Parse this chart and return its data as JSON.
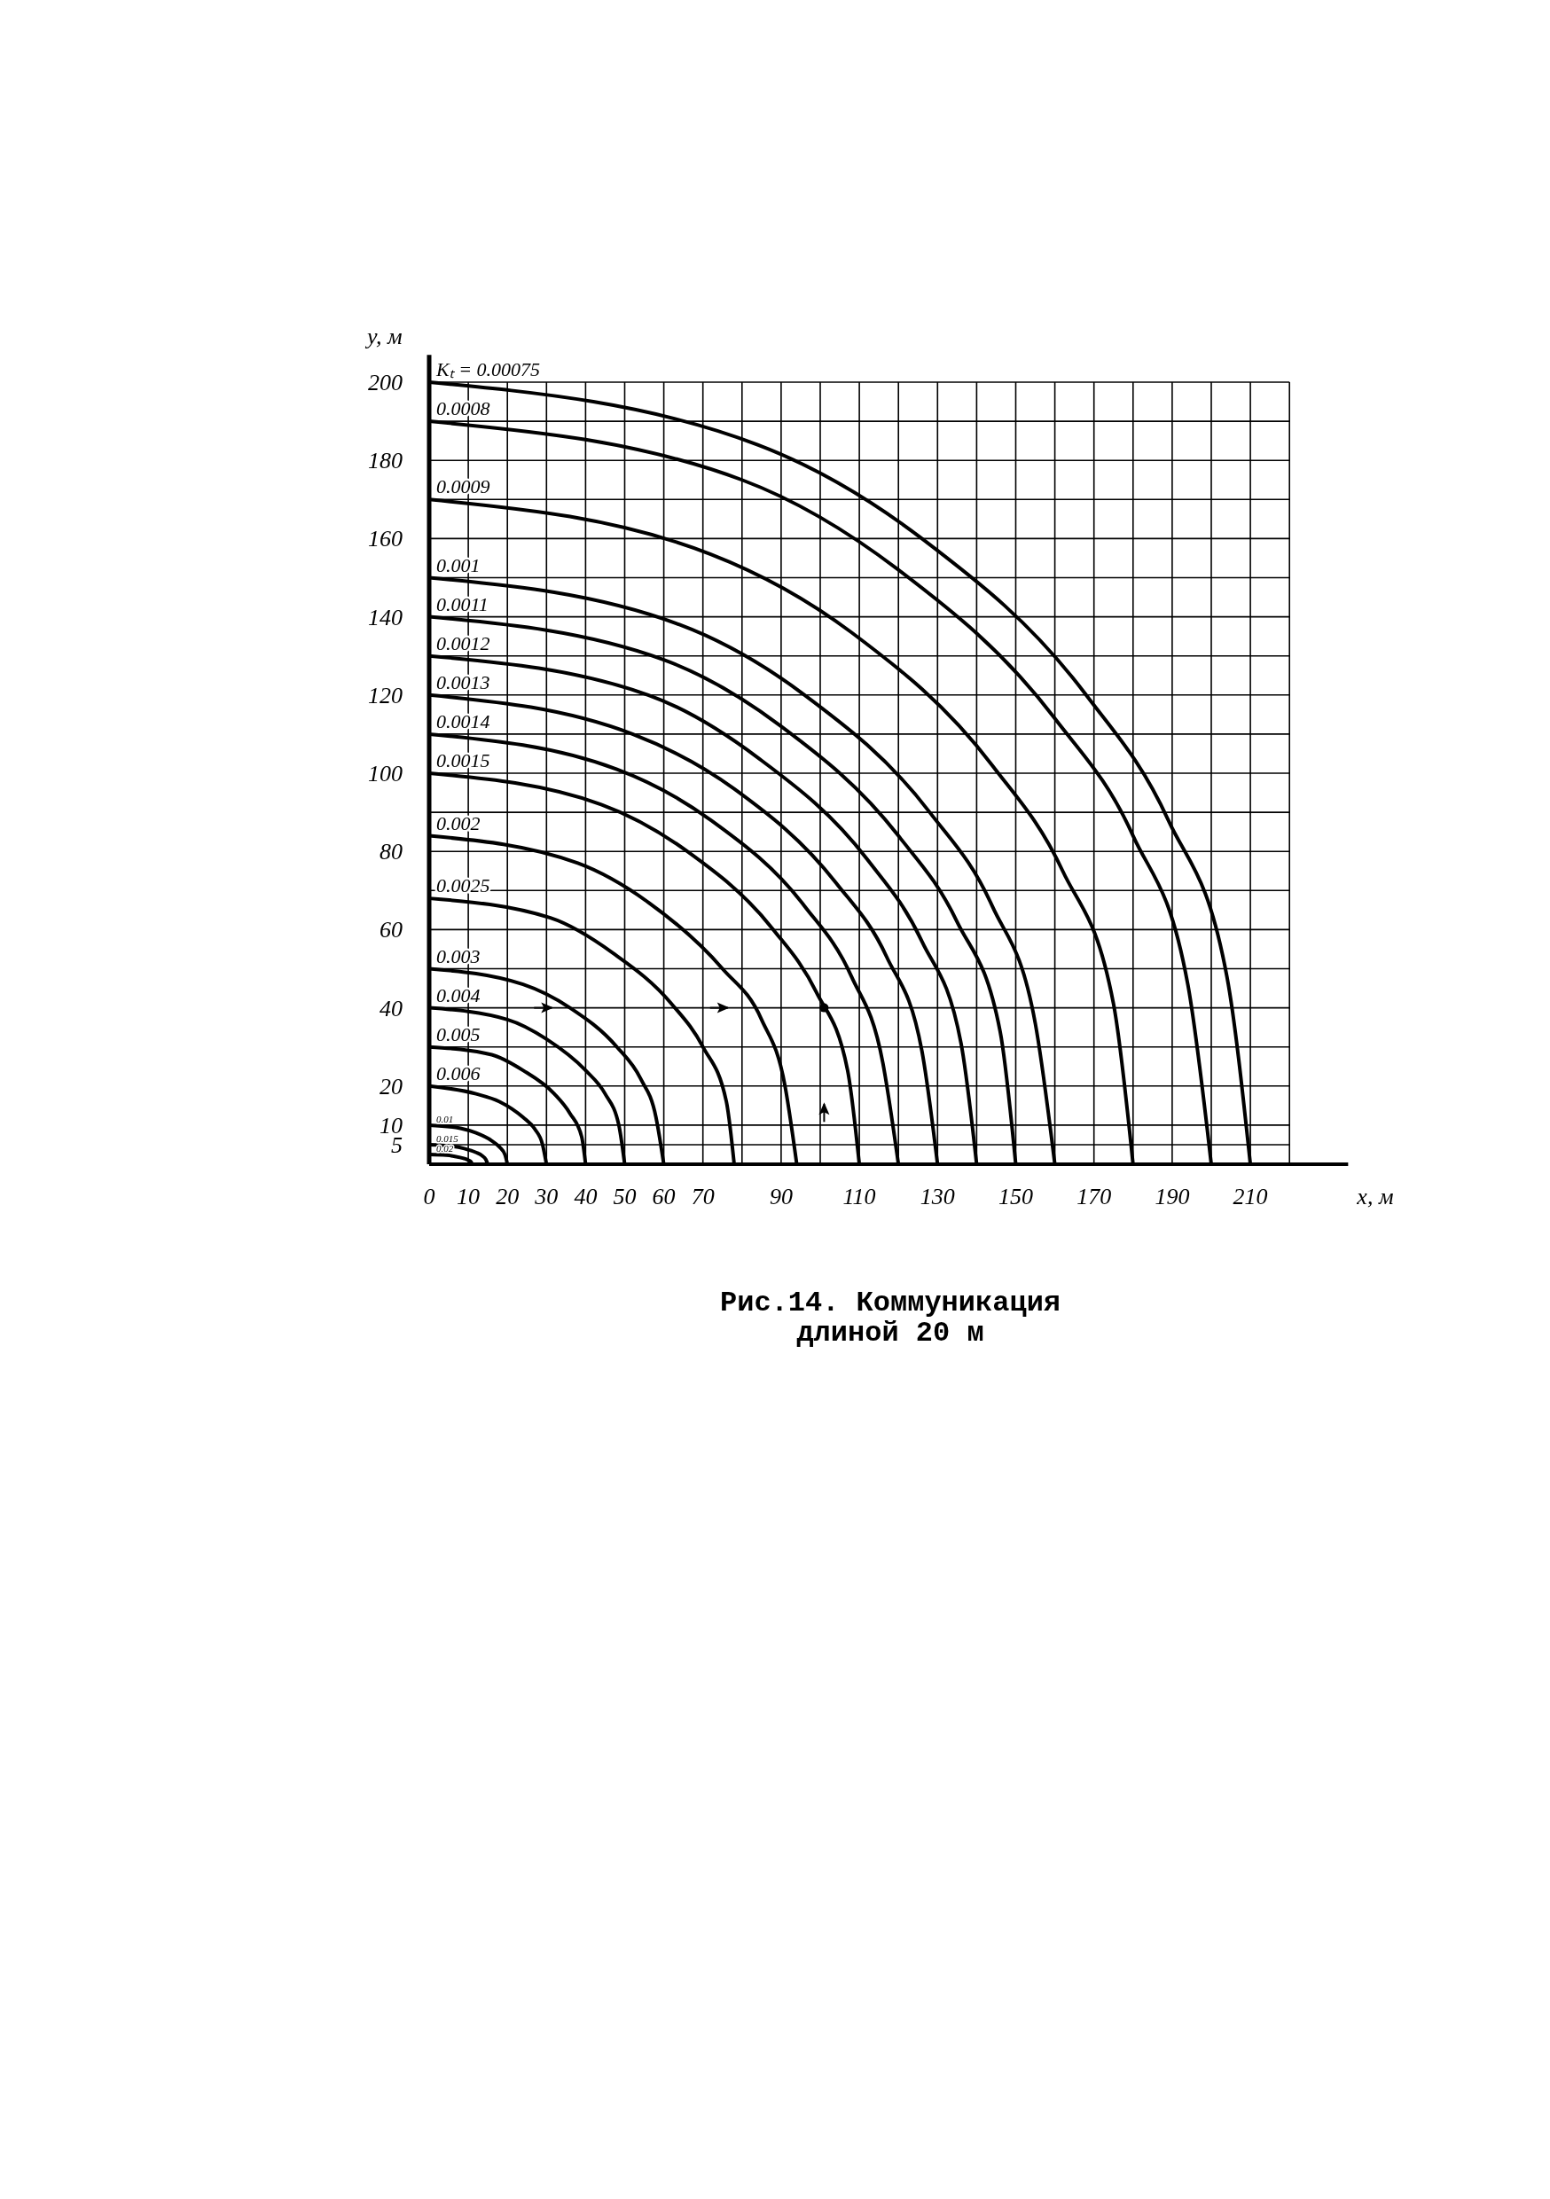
{
  "chart_data": {
    "type": "line",
    "title": "Рис.14. Коммуникация\nдлиной 20 м",
    "xlabel": "x, м",
    "ylabel": "y, м",
    "xlim": [
      0,
      235
    ],
    "ylim": [
      0,
      207
    ],
    "xticks": [
      0,
      10,
      20,
      30,
      40,
      50,
      60,
      70,
      {
        "value": 80,
        "label": null
      },
      90,
      {
        "value": 100,
        "label": null
      },
      110,
      {
        "value": 120,
        "label": null
      },
      130,
      {
        "value": 140,
        "label": null
      },
      150,
      {
        "value": 160,
        "label": null
      },
      170,
      {
        "value": 180,
        "label": null
      },
      190,
      {
        "value": 200,
        "label": null
      },
      210,
      {
        "value": 220,
        "label": null
      }
    ],
    "yticks": [
      {
        "value": 0,
        "label": null
      },
      5,
      10,
      20,
      {
        "value": 30,
        "label": null
      },
      40,
      {
        "value": 50,
        "label": null
      },
      60,
      {
        "value": 70,
        "label": null
      },
      80,
      {
        "value": 90,
        "label": null
      },
      100,
      {
        "value": 110,
        "label": null
      },
      120,
      {
        "value": 130,
        "label": null
      },
      140,
      {
        "value": 150,
        "label": null
      },
      160,
      {
        "value": 170,
        "label": null
      },
      180,
      {
        "value": 190,
        "label": null
      },
      200
    ],
    "grid": true,
    "marker": "none",
    "line_style": "solid",
    "series": [
      {
        "name": "Kₜ = 0.00075",
        "color": "#000000",
        "x": [
          0,
          84,
          126,
          168,
          189,
          204,
          210
        ],
        "values": [
          200,
          184,
          160,
          120,
          88,
          48,
          0
        ]
      },
      {
        "name": "0.0008",
        "color": "#000000",
        "x": [
          0,
          80,
          120,
          160,
          180,
          194,
          200
        ],
        "values": [
          190,
          175,
          152,
          114,
          84,
          46,
          0
        ]
      },
      {
        "name": "0.0009",
        "color": "#000000",
        "x": [
          0,
          72,
          108,
          144,
          162,
          175,
          180
        ],
        "values": [
          170,
          156,
          136,
          102,
          75,
          41,
          0
        ]
      },
      {
        "name": "0.001",
        "color": "#000000",
        "x": [
          0,
          64,
          96,
          128,
          144,
          155,
          160
        ],
        "values": [
          150,
          138,
          120,
          90,
          66,
          36,
          0
        ]
      },
      {
        "name": "0.0011",
        "color": "#000000",
        "x": [
          0,
          60,
          90,
          120,
          135,
          146,
          150
        ],
        "values": [
          140,
          129,
          112,
          84,
          62,
          34,
          0
        ]
      },
      {
        "name": "0.0012",
        "color": "#000000",
        "x": [
          0,
          56,
          84,
          112,
          126,
          136,
          140
        ],
        "values": [
          130,
          120,
          104,
          78,
          57,
          31,
          0
        ]
      },
      {
        "name": "0.0013",
        "color": "#000000",
        "x": [
          0,
          52,
          78,
          104,
          117,
          126,
          130
        ],
        "values": [
          120,
          110,
          96,
          72,
          53,
          29,
          0
        ]
      },
      {
        "name": "0.0014",
        "color": "#000000",
        "x": [
          0,
          48,
          72,
          96,
          108,
          116,
          120
        ],
        "values": [
          110,
          101,
          88,
          66,
          48,
          26,
          0
        ]
      },
      {
        "name": "0.0015",
        "color": "#000000",
        "x": [
          0,
          44,
          66,
          88,
          99,
          107,
          110
        ],
        "values": [
          100,
          92,
          80,
          60,
          44,
          24,
          0
        ]
      },
      {
        "name": "0.002",
        "color": "#000000",
        "x": [
          0,
          38,
          56,
          75,
          85,
          91,
          94
        ],
        "values": [
          84,
          77,
          67,
          50,
          37,
          20,
          0
        ]
      },
      {
        "name": "0.0025",
        "color": "#000000",
        "x": [
          0,
          31,
          47,
          62,
          70,
          76,
          78
        ],
        "values": [
          68,
          63,
          54,
          41,
          30,
          16,
          0
        ]
      },
      {
        "name": "0.003",
        "color": "#000000",
        "x": [
          0,
          24,
          36,
          48,
          54,
          58,
          60
        ],
        "values": [
          50,
          46,
          40,
          30,
          22,
          12,
          0
        ]
      },
      {
        "name": "0.004",
        "color": "#000000",
        "x": [
          0,
          20,
          30,
          40,
          45,
          48.5,
          50
        ],
        "values": [
          40,
          37,
          32,
          24,
          18,
          10,
          0
        ]
      },
      {
        "name": "0.005",
        "color": "#000000",
        "x": [
          0,
          16,
          24,
          32,
          36,
          39,
          40
        ],
        "values": [
          30,
          28,
          24,
          18,
          13,
          7,
          0
        ]
      },
      {
        "name": "0.006",
        "color": "#000000",
        "x": [
          0,
          12,
          18,
          24,
          27,
          29,
          30
        ],
        "values": [
          20,
          18,
          16,
          12,
          9,
          5,
          0
        ]
      },
      {
        "name": "0.01",
        "color": "#000000",
        "x": [
          0,
          8,
          12,
          16,
          18,
          19.4,
          20
        ],
        "values": [
          10,
          9.2,
          8,
          6,
          4.4,
          2.4,
          0
        ]
      },
      {
        "name": "0.015",
        "color": "#000000",
        "x": [
          0,
          6,
          9,
          12,
          13.5,
          14.5,
          15
        ],
        "values": [
          5,
          4.6,
          4,
          3,
          2.2,
          1.2,
          0
        ]
      },
      {
        "name": "0.02",
        "color": "#000000",
        "x": [
          0,
          4.4,
          6.6,
          8.8,
          9.9,
          10.7,
          11
        ],
        "values": [
          2.5,
          2.3,
          2,
          1.5,
          1.1,
          0.6,
          0
        ]
      }
    ]
  }
}
